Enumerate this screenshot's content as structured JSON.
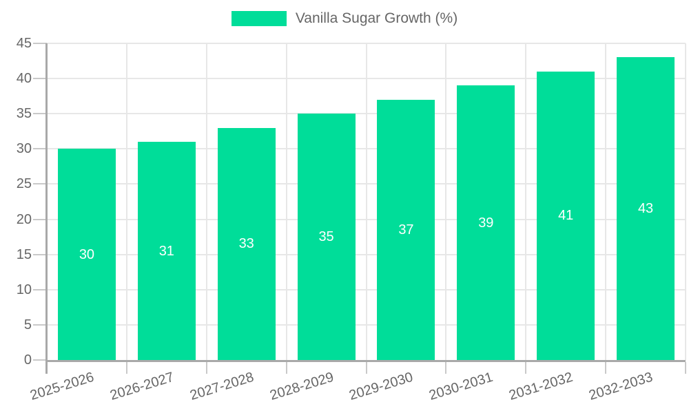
{
  "chart_data": {
    "type": "bar",
    "title": "",
    "categories": [
      "2025-2026",
      "2026-2027",
      "2027-2028",
      "2028-2029",
      "2029-2030",
      "2030-2031",
      "2031-2032",
      "2032-2033"
    ],
    "series": [
      {
        "name": "Vanilla Sugar Growth (%)",
        "values": [
          30,
          31,
          33,
          35,
          37,
          39,
          41,
          43
        ],
        "color": "#00dd99"
      }
    ],
    "xlabel": "",
    "ylabel": "",
    "ylim": [
      0,
      45
    ],
    "yticks": [
      0,
      5,
      10,
      15,
      20,
      25,
      30,
      35,
      40,
      45
    ],
    "grid": true,
    "legend_position": "top",
    "value_labels": true
  },
  "colors": {
    "bar": "#00dd99",
    "tick_text": "#666666",
    "value_label": "#ffffff",
    "gridline": "#e7e7e7",
    "axis_line": "#a9a9a9"
  }
}
